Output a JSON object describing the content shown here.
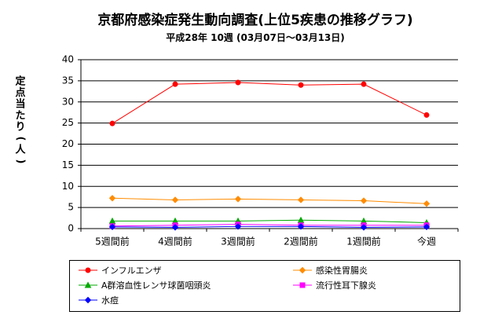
{
  "chart_data": {
    "type": "line",
    "title": "京都府感染症発生動向調査(上位5疾患の推移グラフ)",
    "subtitle": "平成28年 10週 (03月07日～03月13日)",
    "ylabel": "定点当たり(人)",
    "xlabel": "",
    "categories": [
      "5週間前",
      "4週間前",
      "3週間前",
      "2週間前",
      "1週間前",
      "今週"
    ],
    "ylim": [
      0,
      40
    ],
    "yticks": [
      0,
      5,
      10,
      15,
      20,
      25,
      30,
      35,
      40
    ],
    "grid": true,
    "legend_position": "bottom",
    "series": [
      {
        "name": "インフルエンザ",
        "color": "#ff0000",
        "marker": "circle",
        "values": [
          24.9,
          34.2,
          34.6,
          34.0,
          34.2,
          26.9
        ]
      },
      {
        "name": "感染性胃腸炎",
        "color": "#ff8c00",
        "marker": "diamond",
        "values": [
          7.2,
          6.8,
          7.0,
          6.8,
          6.6,
          5.9
        ]
      },
      {
        "name": "A群溶血性レンサ球菌咽頭炎",
        "color": "#00aa00",
        "marker": "triangle",
        "values": [
          1.8,
          1.8,
          1.8,
          2.0,
          1.8,
          1.4
        ]
      },
      {
        "name": "流行性耳下腺炎",
        "color": "#ff00ff",
        "marker": "square",
        "values": [
          0.6,
          0.8,
          1.0,
          0.8,
          0.8,
          0.8
        ]
      },
      {
        "name": "水痘",
        "color": "#0000ff",
        "marker": "diamond",
        "values": [
          0.4,
          0.3,
          0.5,
          0.5,
          0.3,
          0.4
        ]
      }
    ]
  }
}
